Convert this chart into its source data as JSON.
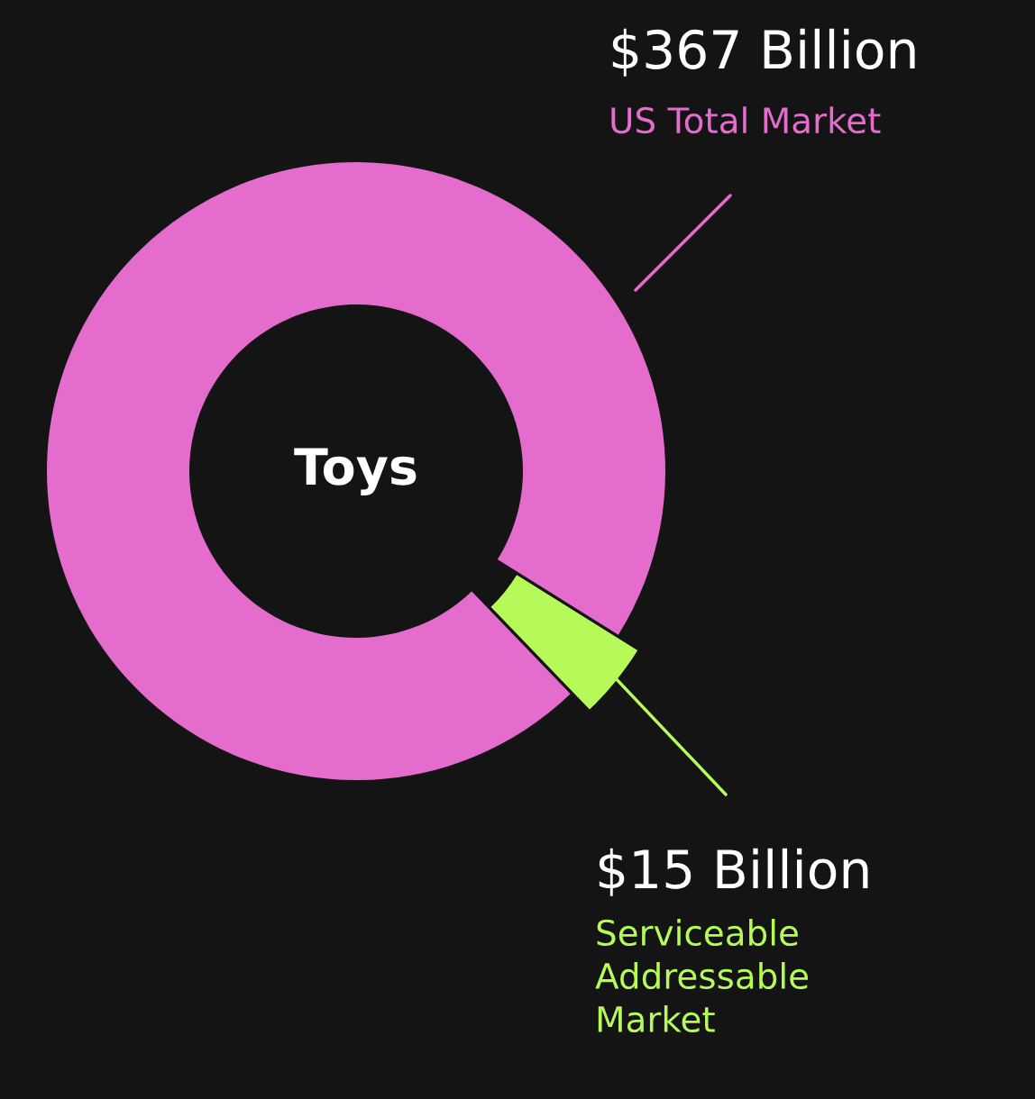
{
  "chart_data": {
    "type": "donut",
    "categories": [
      "US Total Market",
      "Serviceable Addressable Market"
    ],
    "values": [
      367,
      15
    ],
    "value_labels": [
      "$367 Billion",
      "$15 Billion"
    ],
    "colors": [
      "#e46ccc",
      "#b6fa5a"
    ],
    "annotations": [
      "Toys"
    ]
  }
}
